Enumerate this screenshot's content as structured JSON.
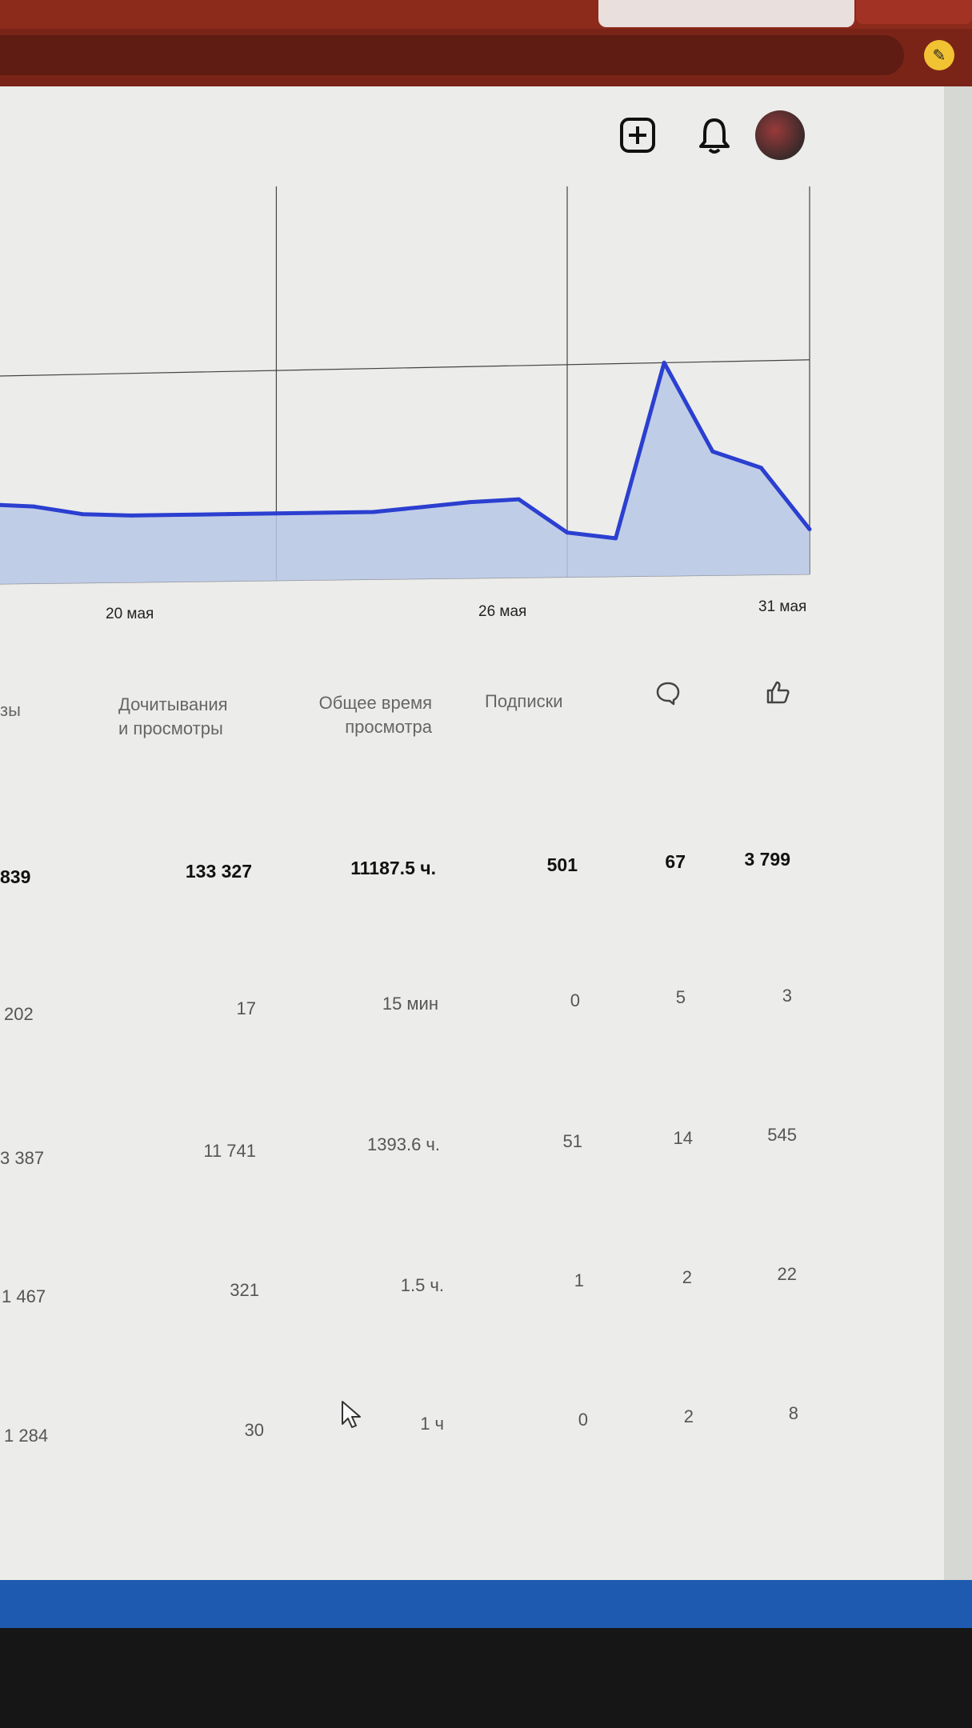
{
  "icons": {
    "create": "plus-square-icon",
    "notifications": "bell-icon",
    "profile": "avatar",
    "comments": "comment-icon",
    "likes": "thumbs-up-icon"
  },
  "colors": {
    "line": "#2b3fd0",
    "fill": "#b9c8e6",
    "grid": "#444444",
    "taskbar": "#1e5bb0"
  },
  "chart_data": {
    "type": "area",
    "x_tick_labels": [
      "20 мая",
      "26 мая",
      "31 мая"
    ],
    "x_tick_days": [
      20,
      26,
      31
    ],
    "x": [
      14.3,
      15,
      16,
      17,
      18,
      19,
      20,
      21,
      22,
      23,
      24,
      25,
      26,
      27,
      28,
      29,
      30,
      31
    ],
    "values": [
      0.38,
      0.37,
      0.33,
      0.32,
      0.32,
      0.32,
      0.32,
      0.32,
      0.32,
      0.34,
      0.36,
      0.37,
      0.21,
      0.18,
      1.0,
      0.58,
      0.5,
      0.21
    ],
    "y_relative_note": "relative values, horizontal gridline at 1.0",
    "ylim": [
      0,
      1.05
    ],
    "grid": true,
    "legend": "none"
  },
  "table": {
    "headers": [
      {
        "key": "views",
        "label": "зы"
      },
      {
        "key": "reads",
        "line1": "Дочитывания",
        "line2": "и просмотры"
      },
      {
        "key": "time",
        "line1": "Общее время",
        "line2": "просмотра"
      },
      {
        "key": "subs",
        "label": "Подписки"
      }
    ],
    "total": [
      "839",
      "133 327",
      "11187.5 ч.",
      "501",
      "67",
      "3 799"
    ],
    "rows": [
      [
        "202",
        "17",
        "15 мин",
        "0",
        "5",
        "3"
      ],
      [
        "3 387",
        "11 741",
        "1393.6 ч.",
        "51",
        "14",
        "545"
      ],
      [
        "1 467",
        "321",
        "1.5 ч.",
        "1",
        "2",
        "22"
      ],
      [
        "1 284",
        "30",
        "1 ч",
        "0",
        "2",
        "8"
      ]
    ]
  }
}
